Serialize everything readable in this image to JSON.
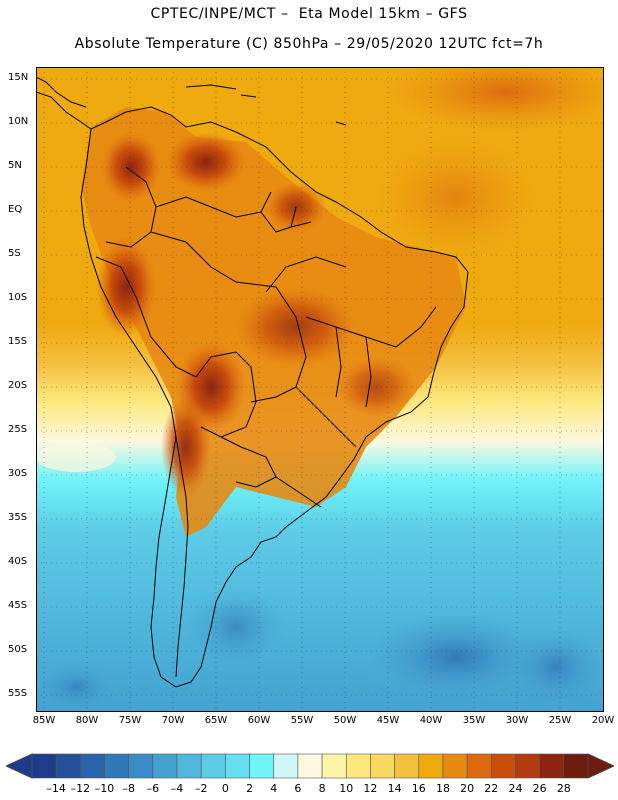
{
  "header": {
    "line1": "CPTEC/INPE/MCT –  Eta Model 15km – GFS",
    "line2": "Absolute Temperature (C) 850hPa – 29/05/2020 12UTC fct=7h"
  },
  "map": {
    "lat_labels": [
      "15N",
      "10N",
      "5N",
      "EQ",
      "5S",
      "10S",
      "15S",
      "20S",
      "25S",
      "30S",
      "35S",
      "40S",
      "45S",
      "50S",
      "55S"
    ],
    "lon_labels": [
      "85W",
      "80W",
      "75W",
      "70W",
      "65W",
      "60W",
      "55W",
      "50W",
      "45W",
      "40W",
      "35W",
      "30W",
      "25W",
      "20W"
    ],
    "extent": {
      "lon": [
        -85,
        -20
      ],
      "lat": [
        -58,
        16
      ]
    }
  },
  "legend": {
    "labels": [
      "-14",
      "-12",
      "-10",
      "-8",
      "-6",
      "-4",
      "-2",
      "0",
      "2",
      "4",
      "6",
      "8",
      "10",
      "12",
      "14",
      "16",
      "18",
      "20",
      "22",
      "24",
      "26",
      "28"
    ],
    "colors": [
      "#1e3c8c",
      "#24509c",
      "#2a64ac",
      "#3278b8",
      "#3a8cc4",
      "#44a2d0",
      "#50b8dc",
      "#5ccce6",
      "#66e0f0",
      "#70f4fa",
      "#d0f6fa",
      "#fdf8e0",
      "#fdf4a8",
      "#fde87e",
      "#f9d860",
      "#f3c03e",
      "#efaa10",
      "#e78a12",
      "#dd6a0e",
      "#c94e0c",
      "#b23c0e",
      "#8c2410",
      "#6e1c10"
    ]
  }
}
